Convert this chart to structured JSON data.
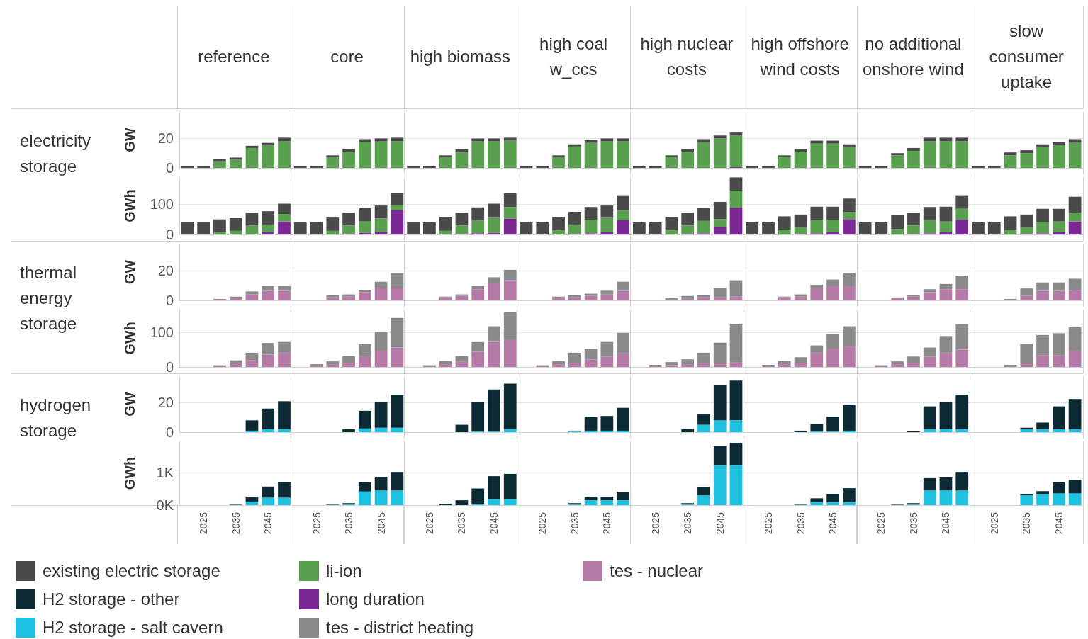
{
  "chart_data": [
    {
      "type": "bar",
      "title": "electricity storage",
      "annotations": [
        "reference",
        "core",
        "high biomass",
        "high coal w_ccs",
        "high nuclear costs",
        "high offshore wind costs",
        "no additional onshore wind",
        "slow consumer uptake"
      ],
      "ylabel": "GW",
      "legend": "bottom left",
      "tick_labels": "y",
      "stacked": true,
      "grid": "y",
      "ylim": [
        0,
        38
      ],
      "yticks": [
        0,
        20
      ],
      "categories": [
        null,
        "2025",
        null,
        "2035",
        null,
        "2045",
        null,
        null,
        "2025",
        null,
        "2035",
        null,
        "2045",
        null,
        null,
        "2025",
        null,
        "2035",
        null,
        "2045",
        null,
        null,
        "2025",
        null,
        "2035",
        null,
        "2045",
        null,
        null,
        "2025",
        null,
        "2035",
        null,
        "2045",
        null,
        null,
        "2025",
        null,
        "2035",
        null,
        "2045",
        null,
        null,
        "2025",
        null,
        "2035",
        null,
        "2045",
        null,
        null,
        "2025",
        null,
        "2035",
        null,
        "2045",
        null
      ],
      "series": [
        {
          "name": "long duration",
          "color": "#7b2895",
          "values": [
            0,
            0,
            0,
            0,
            0,
            0,
            0,
            0,
            0,
            0,
            0,
            0,
            0,
            0,
            0,
            0,
            0,
            0,
            0,
            0,
            0,
            0,
            0,
            0,
            0,
            0,
            0,
            0,
            0,
            0,
            0,
            0,
            0,
            0,
            0.5,
            0,
            0,
            0,
            0,
            0,
            0,
            0,
            0,
            0,
            0,
            0,
            0,
            0,
            0,
            0,
            0,
            0,
            0,
            0,
            0,
            0
          ]
        },
        {
          "name": "li-ion",
          "color": "#59a14f",
          "values": [
            0,
            0,
            4.5,
            5.5,
            13.5,
            15.5,
            18,
            0,
            0,
            7.5,
            11,
            17.5,
            18,
            18,
            0,
            0,
            7.5,
            10.5,
            18,
            18,
            18.5,
            0,
            0,
            7.5,
            14.5,
            17,
            18,
            18,
            0,
            0,
            7.5,
            11,
            17.5,
            20,
            21.5,
            0,
            0,
            7.5,
            11,
            16.5,
            16.5,
            14,
            0,
            0,
            8.5,
            11.5,
            18,
            18,
            18,
            0,
            0,
            8.5,
            10,
            14,
            15.5,
            17
          ]
        },
        {
          "name": "existing electric storage",
          "color": "#4b4b4b",
          "values": [
            1,
            1,
            1.5,
            1.5,
            1.5,
            1.5,
            2.5,
            1,
            1,
            1,
            2,
            2,
            2,
            2.5,
            1,
            1,
            1,
            2,
            2,
            2,
            2,
            1,
            1,
            1,
            1.5,
            2,
            2,
            2,
            1,
            1,
            1,
            2,
            2,
            2,
            2,
            1,
            1,
            1,
            2,
            2,
            2,
            2,
            1,
            1,
            1.5,
            2,
            2.5,
            2.5,
            2.5,
            1,
            1,
            2,
            2,
            2,
            2,
            2.5
          ]
        }
      ]
    },
    {
      "type": "bar",
      "ylabel": "GWh",
      "tick_labels": "y",
      "stacked": true,
      "grid": "y",
      "ylim": [
        0,
        190
      ],
      "yticks": [
        0,
        100
      ],
      "categories": [
        null,
        "2025",
        null,
        "2035",
        null,
        "2045",
        null,
        null,
        "2025",
        null,
        "2035",
        null,
        "2045",
        null,
        null,
        "2025",
        null,
        "2035",
        null,
        "2045",
        null,
        null,
        "2025",
        null,
        "2035",
        null,
        "2045",
        null,
        null,
        "2025",
        null,
        "2035",
        null,
        "2045",
        null,
        null,
        "2025",
        null,
        "2035",
        null,
        "2045",
        null,
        null,
        "2025",
        null,
        "2035",
        null,
        "2045",
        null,
        null,
        "2025",
        null,
        "2035",
        null,
        "2045",
        null
      ],
      "series": [
        {
          "color": "#7b2895",
          "values": [
            0,
            0,
            0,
            0,
            0,
            8,
            43,
            0,
            0,
            0,
            2,
            5,
            8,
            81,
            0,
            0,
            0,
            2,
            4,
            6,
            53,
            0,
            0,
            0,
            2,
            4,
            8,
            47,
            0,
            0,
            0,
            2,
            4,
            25,
            89,
            0,
            0,
            0,
            2,
            4,
            8,
            51,
            0,
            0,
            0,
            2,
            4,
            8,
            49,
            0,
            0,
            0,
            2,
            4,
            8,
            43
          ]
        },
        {
          "color": "#59a14f",
          "values": [
            0,
            0,
            8,
            12,
            30,
            25,
            25,
            0,
            0,
            12,
            28,
            38,
            45,
            17,
            0,
            0,
            12,
            28,
            42,
            49,
            38,
            0,
            0,
            14,
            31,
            45,
            47,
            32,
            0,
            0,
            14,
            28,
            41,
            26,
            56,
            0,
            0,
            16,
            22,
            44,
            41,
            24,
            0,
            0,
            18,
            28,
            43,
            35,
            36,
            0,
            0,
            16,
            22,
            38,
            35,
            29
          ]
        },
        {
          "color": "#4b4b4b",
          "values": [
            40,
            40,
            42,
            42,
            42,
            44,
            34,
            40,
            40,
            44,
            42,
            44,
            43,
            38,
            40,
            40,
            46,
            42,
            44,
            47,
            45,
            40,
            40,
            44,
            42,
            42,
            41,
            51,
            40,
            40,
            44,
            42,
            42,
            57,
            44,
            40,
            40,
            44,
            42,
            44,
            43,
            44,
            40,
            40,
            46,
            42,
            44,
            49,
            45,
            40,
            40,
            44,
            42,
            43,
            42,
            53
          ]
        }
      ]
    },
    {
      "type": "bar",
      "title": "thermal energy storage",
      "ylabel": "GW",
      "legend": "bottom left",
      "tick_labels": "y",
      "stacked": true,
      "grid": "y",
      "ylim": [
        0,
        38
      ],
      "yticks": [
        0,
        20
      ],
      "categories": [
        null,
        "2025",
        null,
        "2035",
        null,
        "2045",
        null,
        null,
        "2025",
        null,
        "2035",
        null,
        "2045",
        null,
        null,
        "2025",
        null,
        "2035",
        null,
        "2045",
        null,
        null,
        "2025",
        null,
        "2035",
        null,
        "2045",
        null,
        null,
        "2025",
        null,
        "2035",
        null,
        "2045",
        null,
        null,
        "2025",
        null,
        "2035",
        null,
        "2045",
        null,
        null,
        "2025",
        null,
        "2035",
        null,
        "2045",
        null,
        null,
        "2025",
        null,
        "2035",
        null,
        "2045",
        null
      ],
      "series": [
        {
          "name": "tes - nuclear",
          "color": "#b57ba6",
          "values": [
            0,
            0,
            0.5,
            1.5,
            4,
            6.5,
            6.5,
            0,
            0,
            2,
            2.5,
            5.5,
            8.5,
            8.5,
            0,
            0,
            2,
            3,
            7.5,
            11.5,
            13.5,
            0,
            0,
            1.5,
            2,
            3,
            4,
            6.5,
            0,
            0,
            0.5,
            1,
            2,
            2,
            2.5,
            0,
            0,
            2,
            2.5,
            8.5,
            9.5,
            9.5,
            0,
            0,
            1.5,
            2.5,
            5.5,
            7.5,
            7.5,
            0,
            0,
            0.5,
            3,
            6.5,
            6.5,
            7
          ]
        },
        {
          "name": "tes - district heating",
          "color": "#8a8a8a",
          "values": [
            0,
            0,
            0.5,
            1,
            2,
            3,
            3,
            0,
            0,
            1.5,
            1.5,
            1.5,
            4,
            10,
            0,
            0,
            0.5,
            1,
            2,
            4,
            7,
            0,
            0,
            1,
            1.5,
            1.5,
            2.5,
            6,
            0,
            0,
            1,
            2,
            1.5,
            6.5,
            11,
            0,
            0,
            0.5,
            1.5,
            2,
            4.5,
            9,
            0,
            0,
            0.5,
            1,
            2,
            3.5,
            9,
            0,
            0,
            0.5,
            5,
            5.5,
            5.5,
            7.5
          ]
        }
      ]
    },
    {
      "type": "bar",
      "ylabel": "GWh",
      "tick_labels": "y",
      "stacked": true,
      "grid": "y",
      "ylim": [
        0,
        165
      ],
      "yticks": [
        0,
        100
      ],
      "categories": [
        null,
        "2025",
        null,
        "2035",
        null,
        "2045",
        null,
        null,
        "2025",
        null,
        "2035",
        null,
        "2045",
        null,
        null,
        "2025",
        null,
        "2035",
        null,
        "2045",
        null,
        null,
        "2025",
        null,
        "2035",
        null,
        "2045",
        null,
        null,
        "2025",
        null,
        "2035",
        null,
        "2045",
        null,
        null,
        "2025",
        null,
        "2035",
        null,
        "2045",
        null,
        null,
        "2025",
        null,
        "2035",
        null,
        "2045",
        null,
        null,
        "2025",
        null,
        "2035",
        null,
        "2045",
        null
      ],
      "series": [
        {
          "color": "#b57ba6",
          "values": [
            0,
            0,
            2,
            11,
            20,
            36,
            41,
            0,
            3,
            8,
            12,
            31,
            47,
            56,
            0,
            2,
            8,
            16,
            44,
            72,
            80,
            0,
            2,
            8,
            12,
            22,
            30,
            39,
            0,
            2,
            5,
            8,
            12,
            11,
            14,
            0,
            2,
            8,
            12,
            41,
            53,
            59,
            0,
            2,
            8,
            12,
            30,
            41,
            50,
            0,
            0,
            2,
            11,
            33,
            33,
            47
          ]
        },
        {
          "color": "#8a8a8a",
          "values": [
            0,
            0,
            3,
            8,
            21,
            33,
            31,
            0,
            5,
            8,
            19,
            35,
            55,
            85,
            0,
            3,
            9,
            15,
            28,
            45,
            78,
            0,
            3,
            9,
            29,
            30,
            42,
            59,
            0,
            4,
            9,
            14,
            29,
            59,
            108,
            0,
            4,
            9,
            16,
            21,
            41,
            58,
            0,
            3,
            8,
            18,
            26,
            48,
            73,
            0,
            0,
            4,
            56,
            59,
            64,
            67
          ]
        }
      ]
    },
    {
      "type": "bar",
      "title": "hydrogen storage",
      "ylabel": "GW",
      "legend": "bottom left",
      "tick_labels": "y",
      "stacked": true,
      "grid": "y",
      "ylim": [
        0,
        38
      ],
      "yticks": [
        0,
        20
      ],
      "categories": [
        null,
        "2025",
        null,
        "2035",
        null,
        "2045",
        null,
        null,
        "2025",
        null,
        "2035",
        null,
        "2045",
        null,
        null,
        "2025",
        null,
        "2035",
        null,
        "2045",
        null,
        null,
        "2025",
        null,
        "2035",
        null,
        "2045",
        null,
        null,
        "2025",
        null,
        "2035",
        null,
        "2045",
        null,
        null,
        "2025",
        null,
        "2035",
        null,
        "2045",
        null,
        null,
        "2025",
        null,
        "2035",
        null,
        "2045",
        null,
        null,
        "2025",
        null,
        "2035",
        null,
        "2045",
        null
      ],
      "series": [
        {
          "name": "H2 storage - salt cavern",
          "color": "#1fc1e1",
          "values": [
            0,
            0,
            0,
            0,
            1,
            2,
            2,
            0,
            0,
            0,
            0,
            2.5,
            3,
            3,
            0,
            0,
            0,
            0,
            0.5,
            0.5,
            2,
            0,
            0,
            0,
            0.5,
            1,
            1,
            1,
            0,
            0,
            0,
            0,
            5,
            8,
            8,
            0,
            0,
            0,
            0,
            0.5,
            0.5,
            1,
            0,
            0,
            0,
            0,
            2,
            2,
            2,
            0,
            0,
            0,
            2,
            2,
            2,
            2
          ]
        },
        {
          "name": "H2 storage - other",
          "color": "#0b2a33",
          "values": [
            0,
            0,
            0,
            0,
            7,
            14,
            19,
            0,
            0,
            0,
            2,
            12,
            17.5,
            22.5,
            0,
            0,
            0,
            5,
            20,
            28.5,
            31,
            0,
            0,
            0,
            0.5,
            9.5,
            10,
            15.5,
            0,
            0,
            0,
            2,
            7,
            24,
            27,
            0,
            0,
            0,
            1,
            5,
            10,
            17.5,
            0,
            0,
            0,
            0.5,
            15.5,
            18.5,
            23.5,
            0,
            0,
            0,
            1,
            4.5,
            15.5,
            20.5
          ]
        }
      ]
    },
    {
      "type": "bar",
      "ylabel": "GWh",
      "stacked": true,
      "grid": "y",
      "ylim": [
        0,
        1960
      ],
      "yticks": [
        {
          "value": 0,
          "label": "0K"
        },
        {
          "value": 1000,
          "label": "1K"
        }
      ],
      "categories": [
        null,
        "2025",
        null,
        "2035",
        null,
        "2045",
        null,
        null,
        "2025",
        null,
        "2035",
        null,
        "2045",
        null,
        null,
        "2025",
        null,
        "2035",
        null,
        "2045",
        null,
        null,
        "2025",
        null,
        "2035",
        null,
        "2045",
        null,
        null,
        "2025",
        null,
        "2035",
        null,
        "2045",
        null,
        null,
        "2025",
        null,
        "2035",
        null,
        "2045",
        null,
        null,
        "2025",
        null,
        "2035",
        null,
        "2045",
        null,
        null,
        "2025",
        null,
        "2035",
        null,
        "2045",
        null
      ],
      "series": [
        {
          "color": "#1fc1e1",
          "values": [
            0,
            0,
            0,
            10,
            110,
            230,
            230,
            0,
            0,
            10,
            20,
            420,
            450,
            450,
            0,
            0,
            0,
            0,
            40,
            190,
            190,
            0,
            0,
            0,
            20,
            150,
            150,
            150,
            0,
            0,
            0,
            20,
            300,
            1230,
            1230,
            0,
            0,
            0,
            10,
            90,
            90,
            90,
            0,
            0,
            10,
            20,
            450,
            450,
            450,
            0,
            0,
            0,
            300,
            340,
            360,
            360
          ]
        },
        {
          "color": "#0b2a33",
          "values": [
            0,
            0,
            0,
            10,
            150,
            340,
            470,
            0,
            0,
            10,
            40,
            280,
            420,
            570,
            0,
            0,
            40,
            150,
            470,
            700,
            770,
            0,
            0,
            0,
            40,
            110,
            110,
            260,
            0,
            0,
            0,
            40,
            260,
            600,
            680,
            0,
            0,
            0,
            10,
            120,
            250,
            430,
            0,
            0,
            10,
            40,
            380,
            400,
            570,
            0,
            0,
            0,
            40,
            90,
            340,
            420
          ]
        }
      ]
    }
  ]
}
